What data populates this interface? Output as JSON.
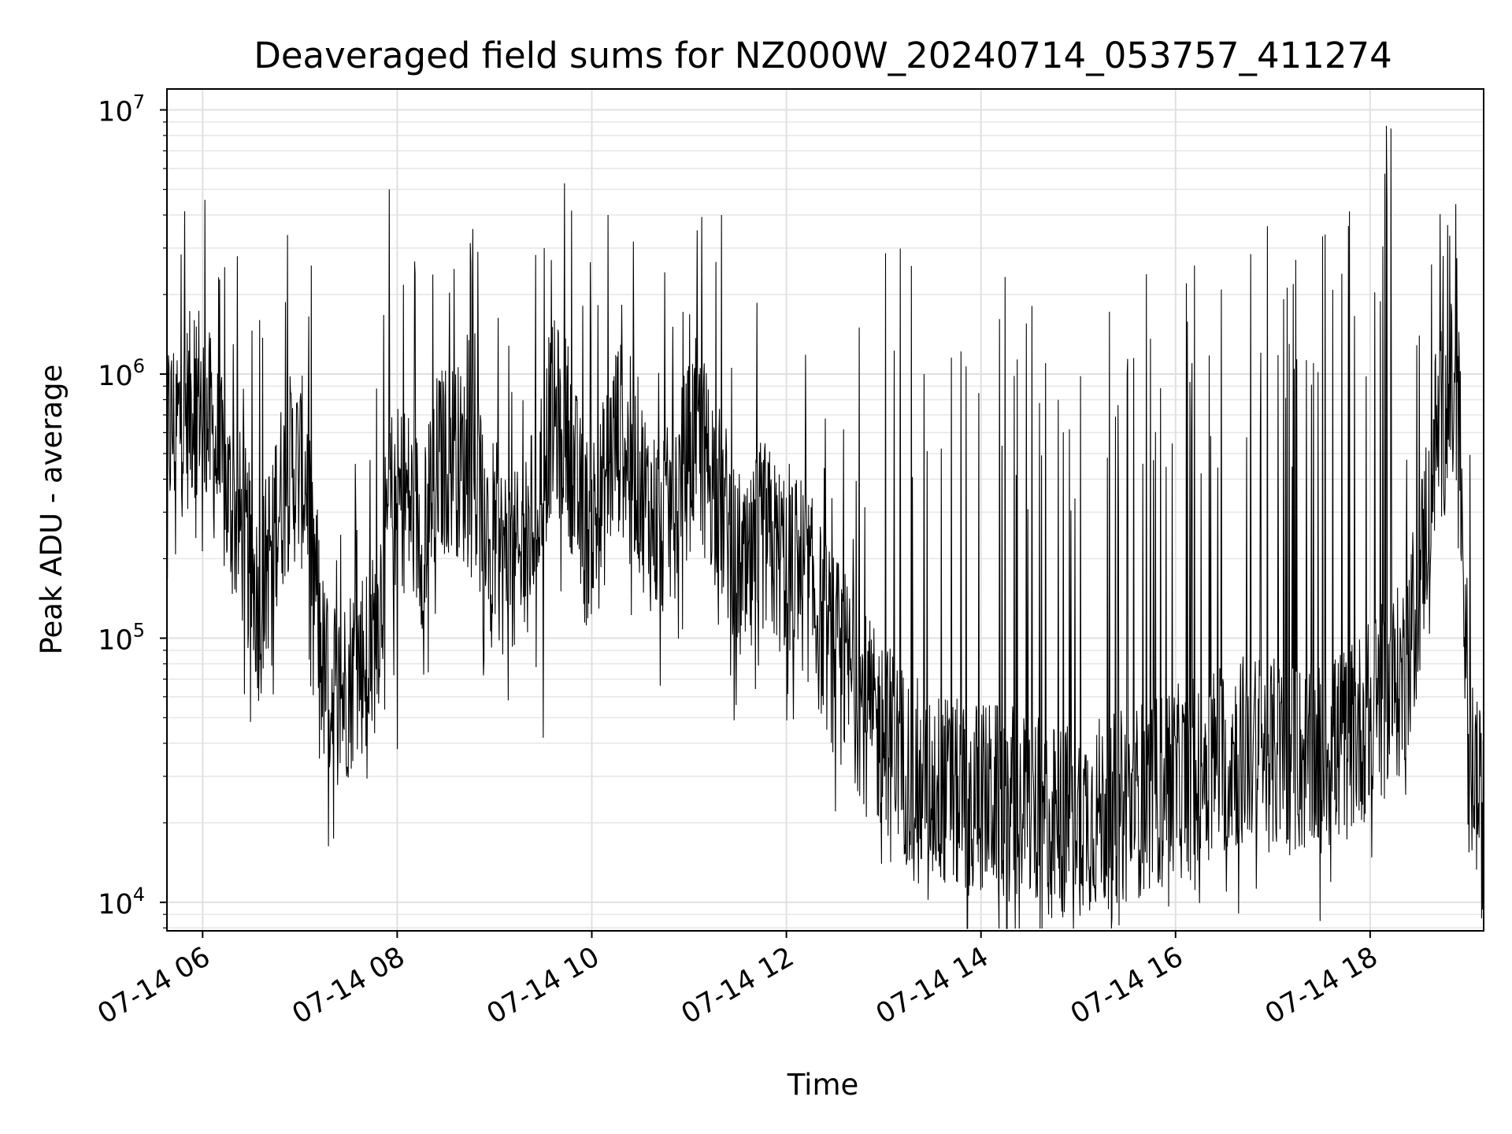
{
  "chart_data": {
    "type": "line",
    "title": "Deaveraged field sums for NZ000W_20240714_053757_411274",
    "xlabel": "Time",
    "ylabel": "Peak ADU - average",
    "yscale": "log",
    "ylim": [
      7800,
      12000000
    ],
    "xlim": [
      "07-14 05:38",
      "07-14 19:10"
    ],
    "x_ticks": [
      {
        "label": "07-14 06",
        "hour": 6
      },
      {
        "label": "07-14 08",
        "hour": 8
      },
      {
        "label": "07-14 10",
        "hour": 10
      },
      {
        "label": "07-14 12",
        "hour": 12
      },
      {
        "label": "07-14 14",
        "hour": 14
      },
      {
        "label": "07-14 16",
        "hour": 16
      },
      {
        "label": "07-14 18",
        "hour": 18
      }
    ],
    "y_ticks": [
      {
        "base": "10",
        "exp": "4",
        "value": 10000
      },
      {
        "base": "10",
        "exp": "5",
        "value": 100000
      },
      {
        "base": "10",
        "exp": "6",
        "value": 1000000
      },
      {
        "base": "10",
        "exp": "7",
        "value": 10000000
      }
    ],
    "grid": true,
    "line_color": "#000000",
    "series": [
      {
        "baseline": [
          [
            "05:38",
            600000
          ],
          [
            "05:50",
            700000
          ],
          [
            "05:58",
            850000
          ],
          [
            "06:05",
            600000
          ],
          [
            "06:15",
            350000
          ],
          [
            "06:25",
            250000
          ],
          [
            "06:35",
            130000
          ],
          [
            "06:45",
            300000
          ],
          [
            "06:55",
            450000
          ],
          [
            "07:05",
            400000
          ],
          [
            "07:10",
            150000
          ],
          [
            "07:15",
            70000
          ],
          [
            "07:25",
            60000
          ],
          [
            "07:35",
            80000
          ],
          [
            "07:45",
            90000
          ],
          [
            "07:50",
            150000
          ],
          [
            "07:55",
            300000
          ],
          [
            "08:05",
            350000
          ],
          [
            "08:15",
            250000
          ],
          [
            "08:25",
            450000
          ],
          [
            "08:35",
            500000
          ],
          [
            "08:45",
            400000
          ],
          [
            "08:55",
            300000
          ],
          [
            "09:05",
            200000
          ],
          [
            "09:15",
            180000
          ],
          [
            "09:25",
            300000
          ],
          [
            "09:35",
            700000
          ],
          [
            "09:45",
            600000
          ],
          [
            "09:55",
            250000
          ],
          [
            "10:05",
            300000
          ],
          [
            "10:15",
            600000
          ],
          [
            "10:25",
            500000
          ],
          [
            "10:35",
            300000
          ],
          [
            "10:45",
            250000
          ],
          [
            "10:55",
            400000
          ],
          [
            "11:05",
            600000
          ],
          [
            "11:15",
            400000
          ],
          [
            "11:25",
            250000
          ],
          [
            "11:35",
            150000
          ],
          [
            "11:45",
            250000
          ],
          [
            "11:55",
            200000
          ],
          [
            "12:05",
            200000
          ],
          [
            "12:15",
            150000
          ],
          [
            "12:25",
            100000
          ],
          [
            "12:35",
            80000
          ],
          [
            "12:45",
            60000
          ],
          [
            "12:55",
            45000
          ],
          [
            "13:05",
            40000
          ],
          [
            "13:15",
            32000
          ],
          [
            "13:30",
            28000
          ],
          [
            "13:45",
            25000
          ],
          [
            "14:00",
            25000
          ],
          [
            "14:15",
            24000
          ],
          [
            "14:30",
            22000
          ],
          [
            "14:45",
            20000
          ],
          [
            "15:00",
            21000
          ],
          [
            "15:15",
            22000
          ],
          [
            "15:30",
            23000
          ],
          [
            "15:45",
            26000
          ],
          [
            "16:00",
            28000
          ],
          [
            "16:15",
            32000
          ],
          [
            "16:30",
            36000
          ],
          [
            "16:45",
            38000
          ],
          [
            "17:00",
            36000
          ],
          [
            "17:15",
            35000
          ],
          [
            "17:30",
            35000
          ],
          [
            "17:45",
            40000
          ],
          [
            "18:00",
            50000
          ],
          [
            "18:10",
            60000
          ],
          [
            "18:20",
            70000
          ],
          [
            "18:30",
            150000
          ],
          [
            "18:40",
            550000
          ],
          [
            "18:50",
            800000
          ],
          [
            "18:55",
            600000
          ],
          [
            "19:00",
            70000
          ],
          [
            "19:05",
            30000
          ],
          [
            "19:10",
            18000
          ]
        ],
        "peaks": [
          [
            "07:55",
            5000000
          ],
          [
            "10:10",
            4000000
          ],
          [
            "11:20",
            4000000
          ],
          [
            "11:05",
            3500000
          ],
          [
            "18:10",
            8700000
          ],
          [
            "18:13",
            8500000
          ],
          [
            "09:35",
            2700000
          ],
          [
            "08:35",
            2500000
          ],
          [
            "18:45",
            2800000
          ],
          [
            "06:35",
            1600000
          ],
          [
            "05:55",
            1600000
          ],
          [
            "12:45",
            1500000
          ],
          [
            "14:40",
            1100000
          ],
          [
            "16:10",
            1100000
          ],
          [
            "17:10",
            1300000
          ],
          [
            "13:25",
            1000000
          ],
          [
            "15:30",
            1000000
          ],
          [
            "17:25",
            1100000
          ]
        ],
        "troughs": [
          [
            "07:12",
            35000
          ],
          [
            "08:00",
            38000
          ],
          [
            "09:30",
            42000
          ],
          [
            "13:55",
            11500
          ],
          [
            "14:35",
            10500
          ],
          [
            "15:05",
            12000
          ],
          [
            "16:50",
            18000
          ]
        ]
      }
    ]
  }
}
